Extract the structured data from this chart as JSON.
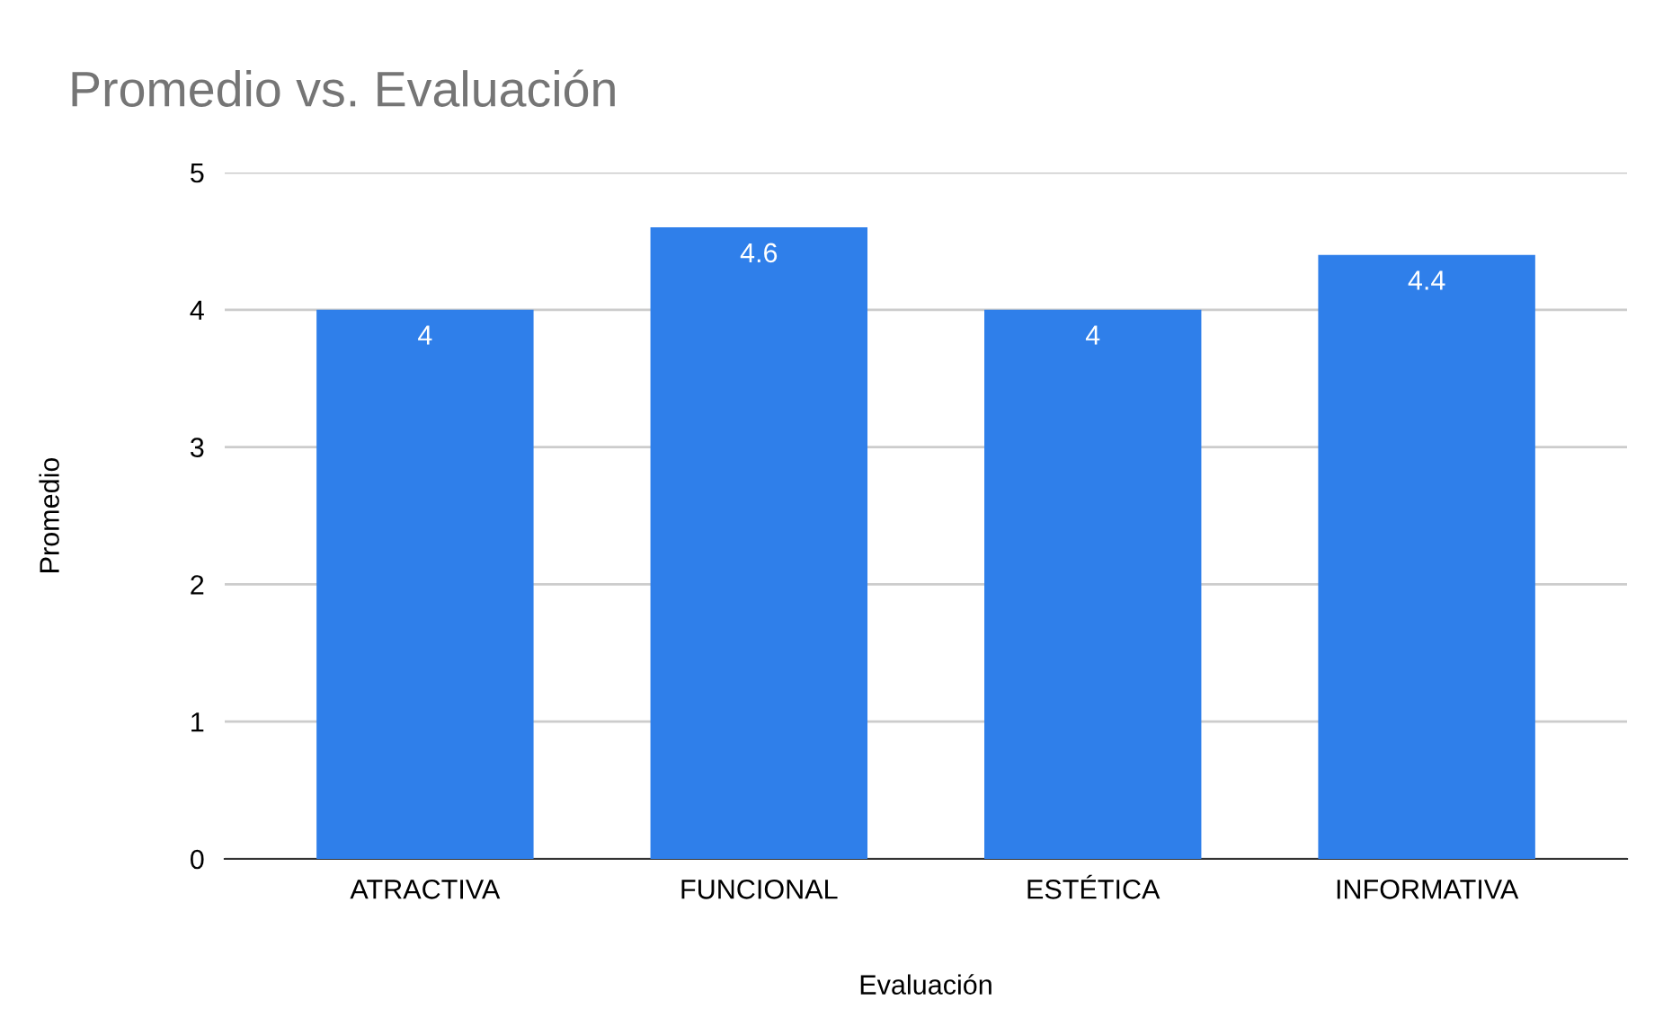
{
  "chart_data": {
    "type": "bar",
    "title": "Promedio vs. Evaluación",
    "xlabel": "Evaluación",
    "ylabel": "Promedio",
    "categories": [
      "ATRACTIVA",
      "FUNCIONAL",
      "ESTÉTICA",
      "INFORMATIVA"
    ],
    "values": [
      4,
      4.6,
      4,
      4.4
    ],
    "color": "#2f7fea",
    "ylim": [
      0,
      5
    ],
    "yticks": [
      0,
      1,
      2,
      3,
      4,
      5
    ],
    "grid": "y",
    "data_labels": true
  }
}
